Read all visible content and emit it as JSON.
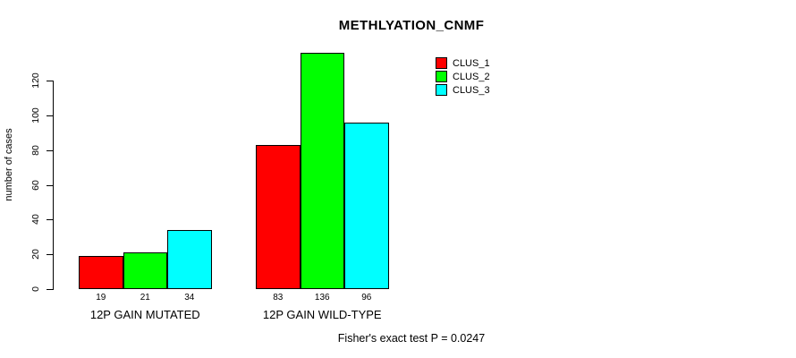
{
  "chart_data": {
    "type": "bar",
    "title": "METHLYATION_CNMF",
    "ylabel": "number of cases",
    "xlabel": "",
    "categories": [
      "12P GAIN MUTATED",
      "12P GAIN WILD-TYPE"
    ],
    "series": [
      {
        "name": "CLUS_1",
        "color": "#ff0000",
        "values": [
          19,
          83
        ]
      },
      {
        "name": "CLUS_2",
        "color": "#00ff00",
        "values": [
          21,
          136
        ]
      },
      {
        "name": "CLUS_3",
        "color": "#00ffff",
        "values": [
          34,
          96
        ]
      }
    ],
    "bar_value_labels": [
      [
        19,
        21,
        34
      ],
      [
        83,
        136,
        96
      ]
    ],
    "yticks": [
      0,
      20,
      40,
      60,
      80,
      100,
      120
    ],
    "ylim": [
      0,
      136
    ],
    "grid": false,
    "legend_position": "top-right",
    "annotation": "Fisher's exact test P = 0.0247",
    "bar_border_color": "#000000",
    "axis_color": "#000000",
    "background_color": "#ffffff"
  }
}
